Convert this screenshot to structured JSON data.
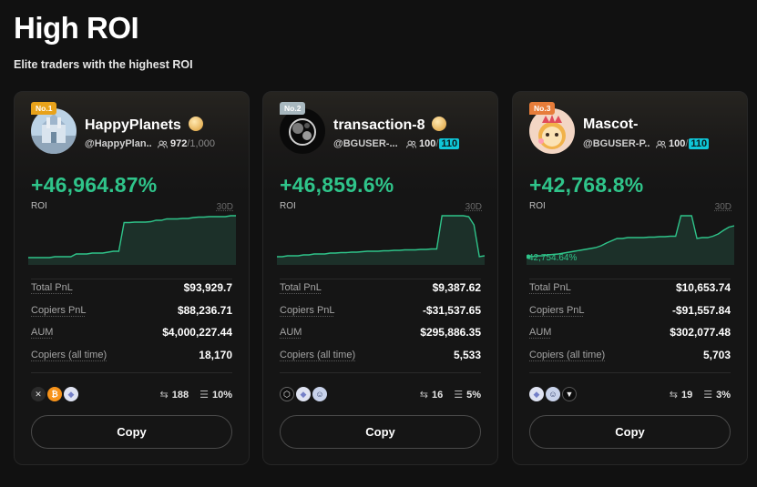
{
  "header": {
    "title": "High ROI",
    "subtitle": "Elite traders with the highest ROI"
  },
  "labels": {
    "roi": "ROI",
    "period": "30D",
    "total_pnl": "Total PnL",
    "copiers_pnl": "Copiers PnL",
    "aum": "AUM",
    "copiers_all_time": "Copiers (all time)",
    "copy_button": "Copy"
  },
  "colors": {
    "positive": "#2fc48a",
    "accent_pill": "#0fc6d8",
    "background": "#111111"
  },
  "traders": [
    {
      "rank": "No.1",
      "name": "HappyPlanets",
      "handle": "@HappyPlan...",
      "followers": "972",
      "followers_max": "/1,000",
      "roi": "+46,964.87%",
      "total_pnl": "$93,929.7",
      "copiers_pnl": "$88,236.71",
      "aum": "$4,000,227.44",
      "copiers_all_time": "18,170",
      "trades": "188",
      "profit_share": "10%",
      "coins": [
        "x-icon",
        "bitcoin-icon",
        "eth-icon"
      ],
      "sparkline": [
        0.08,
        0.08,
        0.08,
        0.08,
        0.08,
        0.1,
        0.1,
        0.1,
        0.1,
        0.16,
        0.16,
        0.16,
        0.18,
        0.18,
        0.18,
        0.2,
        0.22,
        0.22,
        0.85,
        0.85,
        0.86,
        0.86,
        0.86,
        0.87,
        0.9,
        0.9,
        0.93,
        0.93,
        0.93,
        0.94,
        0.94,
        0.96,
        0.97,
        0.97,
        0.98,
        0.98,
        0.98,
        0.98,
        1.0,
        1.0
      ]
    },
    {
      "rank": "No.2",
      "name": "transaction-8",
      "handle": "@BGUSER-...",
      "followers": "100",
      "followers_max": "110",
      "roi": "+46,859.6%",
      "total_pnl": "$9,387.62",
      "copiers_pnl": "-$31,537.65",
      "aum": "$295,886.35",
      "copiers_all_time": "5,533",
      "trades": "16",
      "profit_share": "5%",
      "coins": [
        "eos-icon",
        "eth-icon",
        "bot-icon"
      ],
      "sparkline": [
        0.1,
        0.1,
        0.12,
        0.12,
        0.12,
        0.14,
        0.14,
        0.16,
        0.16,
        0.16,
        0.18,
        0.18,
        0.19,
        0.19,
        0.2,
        0.2,
        0.21,
        0.22,
        0.22,
        0.22,
        0.23,
        0.23,
        0.24,
        0.24,
        0.25,
        0.25,
        0.25,
        0.26,
        0.26,
        0.27,
        0.27,
        1.0,
        1.0,
        1.0,
        1.0,
        1.0,
        0.98,
        0.8,
        0.1,
        0.12
      ]
    },
    {
      "rank": "No.3",
      "name": "Mascot-",
      "handle": "@BGUSER-P...",
      "followers": "100",
      "followers_max": "110",
      "roi": "+42,768.8%",
      "total_pnl": "$10,653.74",
      "copiers_pnl": "-$91,557.84",
      "aum": "$302,077.48",
      "copiers_all_time": "5,703",
      "trades": "19",
      "profit_share": "3%",
      "coins": [
        "eth-icon",
        "bot-icon",
        "tron-icon"
      ],
      "sparkline_note": "42,754.64%",
      "sparkline": [
        0.1,
        0.1,
        0.12,
        0.12,
        0.14,
        0.15,
        0.16,
        0.18,
        0.2,
        0.22,
        0.24,
        0.26,
        0.28,
        0.3,
        0.34,
        0.4,
        0.45,
        0.5,
        0.5,
        0.52,
        0.52,
        0.52,
        0.52,
        0.53,
        0.53,
        0.54,
        0.54,
        0.55,
        0.55,
        1.0,
        1.0,
        1.0,
        0.5,
        0.52,
        0.52,
        0.55,
        0.6,
        0.68,
        0.75,
        0.78
      ]
    }
  ]
}
